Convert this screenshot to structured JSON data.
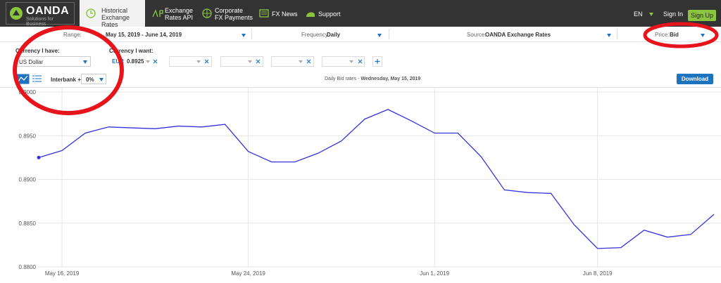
{
  "nav": {
    "logo": "OANDA",
    "logo_sub": "Solutions for Business",
    "items": [
      {
        "lines": [
          "Historical",
          "Exchange Rates"
        ]
      },
      {
        "lines": [
          "Exchange",
          "Rates API"
        ]
      },
      {
        "lines": [
          "Corporate",
          "FX Payments"
        ]
      },
      {
        "lines": [
          "FX News"
        ]
      },
      {
        "lines": [
          "Support"
        ]
      }
    ],
    "lang": "EN",
    "sign_in": "Sign In",
    "sign_up": "Sign Up"
  },
  "filters": {
    "range_label": "Range:",
    "range": "May 15, 2019 - June 14, 2019",
    "frequency_label": "Frequency:",
    "frequency": "Daily",
    "source_label": "Source:",
    "source": "OANDA Exchange Rates",
    "price_label": "Price:",
    "price": "Bid"
  },
  "currency": {
    "have_label": "Currency I have:",
    "have": "US Dollar",
    "want_label": "Currency I want:",
    "want": "EUR",
    "rate": "0.8925"
  },
  "toolbar": {
    "interbank_label": "Interbank +/-",
    "interbank": "0%",
    "caption_prefix": "Daily Bid rates - ",
    "caption_date": "Wednesday, May 15, 2019",
    "download": "Download"
  },
  "chart_data": {
    "type": "line",
    "categories": [
      null,
      "May 16, 2019",
      null,
      null,
      null,
      null,
      null,
      null,
      null,
      "May 24, 2019",
      null,
      null,
      null,
      null,
      null,
      null,
      null,
      "Jun 1, 2019",
      null,
      null,
      null,
      null,
      null,
      null,
      "Jun 8, 2019",
      null,
      null,
      null,
      null,
      null
    ],
    "series": [
      {
        "color": "#3333dd",
        "values": [
          0.8925,
          0.8933,
          0.8953,
          0.896,
          0.8959,
          0.8958,
          0.8961,
          0.896,
          0.8963,
          0.8932,
          0.892,
          0.892,
          0.893,
          0.8944,
          0.8969,
          0.898,
          0.8967,
          0.8953,
          0.8953,
          0.8926,
          0.8888,
          0.8885,
          0.8884,
          0.8848,
          0.8821,
          0.8822,
          0.8842,
          0.8834,
          0.8837,
          0.886
        ]
      }
    ],
    "ylim": [
      0.88,
      0.9
    ],
    "yticks": [
      {
        "value": 0.88,
        "label": "0.8800"
      },
      {
        "value": 0.885,
        "label": "0.8850"
      },
      {
        "value": 0.89,
        "label": "0.8900"
      },
      {
        "value": 0.895,
        "label": "0.8950"
      },
      {
        "value": 0.9,
        "label": "0.9000"
      }
    ],
    "grid": true
  }
}
